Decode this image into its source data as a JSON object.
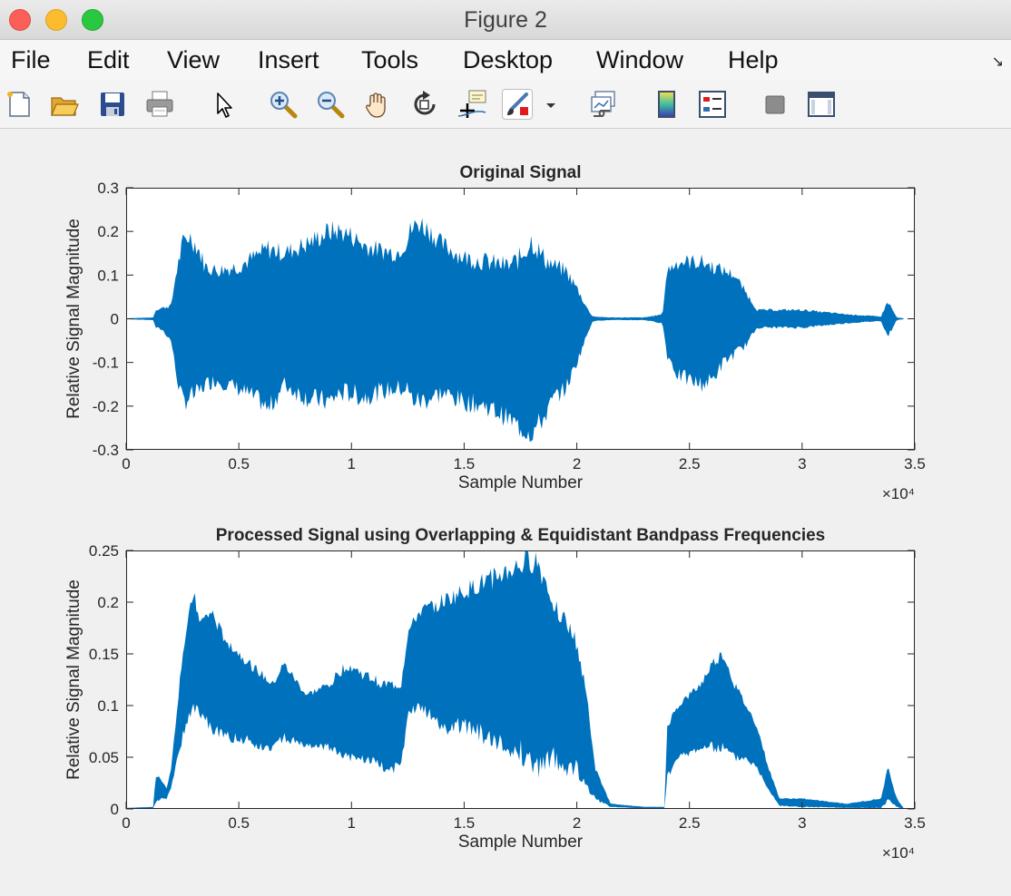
{
  "window": {
    "title": "Figure 2"
  },
  "menu": {
    "items": [
      "File",
      "Edit",
      "View",
      "Insert",
      "Tools",
      "Desktop",
      "Window",
      "Help"
    ]
  },
  "toolbar": {
    "icons": [
      "new-figure-icon",
      "open-file-icon",
      "save-icon",
      "print-icon",
      "edit-plot-arrow-icon",
      "zoom-in-icon",
      "zoom-out-icon",
      "pan-hand-icon",
      "rotate-3d-icon",
      "data-cursor-icon",
      "brush-icon",
      "brush-dropdown-icon",
      "link-plot-icon",
      "colorbar-icon",
      "legend-icon",
      "hide-plot-tools-icon",
      "show-plot-tools-icon"
    ],
    "pressed": "brush-icon"
  },
  "colors": {
    "series": "#0072bd",
    "axes_background": "#ffffff",
    "figure_background": "#f0f0f0"
  },
  "chart_data": [
    {
      "type": "line",
      "title": "Original Signal",
      "xlabel": "Sample Number",
      "ylabel": "Relative Signal Magnitude",
      "xlim": [
        0,
        3.5
      ],
      "ylim": [
        -0.3,
        0.3
      ],
      "xticks": [
        "0",
        "0.5",
        "1",
        "1.5",
        "2",
        "2.5",
        "3",
        "3.5"
      ],
      "yticks": [
        "-0.3",
        "-0.2",
        "-0.1",
        "0",
        "0.1",
        "0.2",
        "0.3"
      ],
      "x_exponent_label": "×10⁴",
      "grid": false,
      "series": [
        {
          "x": [
            0,
            0.12,
            0.13,
            0.16,
            0.2,
            0.22,
            0.25,
            0.28,
            0.32,
            0.35,
            0.4,
            0.5,
            0.6,
            0.63,
            0.7,
            0.8,
            0.9,
            0.95,
            1.0,
            1.05,
            1.1,
            1.2,
            1.25,
            1.26,
            1.3,
            1.35,
            1.4,
            1.5,
            1.6,
            1.7,
            1.75,
            1.8,
            1.85,
            1.9,
            1.95,
            2.0,
            2.05,
            2.07,
            2.1,
            2.15,
            2.3,
            2.38,
            2.4,
            2.45,
            2.5,
            2.55,
            2.6,
            2.65,
            2.7,
            2.75,
            2.8,
            2.85,
            2.9,
            3.0,
            3.2,
            3.35,
            3.38,
            3.42,
            3.45
          ],
          "upper": [
            0.001,
            0.003,
            0.02,
            0.025,
            0.03,
            0.1,
            0.17,
            0.19,
            0.16,
            0.12,
            0.11,
            0.12,
            0.15,
            0.16,
            0.15,
            0.17,
            0.2,
            0.2,
            0.19,
            0.17,
            0.16,
            0.15,
            0.18,
            0.2,
            0.22,
            0.2,
            0.17,
            0.14,
            0.13,
            0.12,
            0.14,
            0.18,
            0.14,
            0.12,
            0.11,
            0.07,
            0.02,
            0.006,
            0.004,
            0.003,
            0.003,
            0.01,
            0.11,
            0.13,
            0.13,
            0.13,
            0.12,
            0.11,
            0.1,
            0.06,
            0.02,
            0.02,
            0.02,
            0.02,
            0.01,
            0.005,
            0.04,
            0.003,
            0.001
          ],
          "lower": [
            -0.001,
            -0.003,
            -0.02,
            -0.025,
            -0.05,
            -0.12,
            -0.19,
            -0.18,
            -0.17,
            -0.15,
            -0.14,
            -0.16,
            -0.19,
            -0.21,
            -0.15,
            -0.18,
            -0.19,
            -0.17,
            -0.17,
            -0.18,
            -0.17,
            -0.16,
            -0.16,
            -0.18,
            -0.19,
            -0.18,
            -0.17,
            -0.19,
            -0.2,
            -0.23,
            -0.25,
            -0.26,
            -0.23,
            -0.18,
            -0.16,
            -0.1,
            -0.03,
            -0.006,
            -0.004,
            -0.003,
            -0.003,
            -0.01,
            -0.08,
            -0.13,
            -0.14,
            -0.15,
            -0.14,
            -0.1,
            -0.08,
            -0.06,
            -0.02,
            -0.02,
            -0.02,
            -0.02,
            -0.01,
            -0.005,
            -0.04,
            -0.003,
            -0.001
          ]
        }
      ]
    },
    {
      "type": "line",
      "title": "Processed Signal using Overlapping & Equidistant Bandpass Frequencies",
      "xlabel": "Sample Number",
      "ylabel": "Relative Signal Magnitude",
      "xlim": [
        0,
        3.5
      ],
      "ylim": [
        0,
        0.25
      ],
      "xticks": [
        "0",
        "0.5",
        "1",
        "1.5",
        "2",
        "2.5",
        "3",
        "3.5"
      ],
      "yticks": [
        "0",
        "0.05",
        "0.1",
        "0.15",
        "0.2",
        "0.25"
      ],
      "x_exponent_label": "×10⁴",
      "grid": false,
      "series": [
        {
          "x": [
            0,
            0.12,
            0.13,
            0.15,
            0.18,
            0.2,
            0.25,
            0.3,
            0.33,
            0.38,
            0.42,
            0.5,
            0.6,
            0.65,
            0.7,
            0.8,
            0.9,
            0.98,
            1.05,
            1.15,
            1.22,
            1.25,
            1.3,
            1.4,
            1.5,
            1.6,
            1.7,
            1.8,
            1.82,
            1.9,
            1.95,
            2.0,
            2.05,
            2.08,
            2.15,
            2.3,
            2.39,
            2.4,
            2.45,
            2.55,
            2.6,
            2.65,
            2.7,
            2.75,
            2.8,
            2.85,
            2.9,
            3.0,
            3.2,
            3.35,
            3.38,
            3.42,
            3.45
          ],
          "upper": [
            0.001,
            0.002,
            0.03,
            0.03,
            0.02,
            0.04,
            0.15,
            0.21,
            0.18,
            0.19,
            0.17,
            0.15,
            0.13,
            0.12,
            0.14,
            0.11,
            0.12,
            0.14,
            0.13,
            0.12,
            0.12,
            0.17,
            0.19,
            0.2,
            0.21,
            0.22,
            0.23,
            0.24,
            0.24,
            0.2,
            0.18,
            0.16,
            0.1,
            0.04,
            0.005,
            0.002,
            0.002,
            0.08,
            0.1,
            0.12,
            0.14,
            0.15,
            0.12,
            0.1,
            0.08,
            0.04,
            0.01,
            0.01,
            0.005,
            0.01,
            0.04,
            0.01,
            0.001
          ],
          "lower": [
            0,
            0.0005,
            0.005,
            0.01,
            0.01,
            0.02,
            0.07,
            0.1,
            0.09,
            0.08,
            0.07,
            0.07,
            0.06,
            0.06,
            0.07,
            0.06,
            0.06,
            0.05,
            0.05,
            0.04,
            0.04,
            0.09,
            0.1,
            0.08,
            0.08,
            0.07,
            0.06,
            0.05,
            0.04,
            0.05,
            0.04,
            0.04,
            0.02,
            0.01,
            0.002,
            0.0005,
            0.0005,
            0.03,
            0.05,
            0.06,
            0.06,
            0.06,
            0.05,
            0.05,
            0.04,
            0.02,
            0.003,
            0.002,
            0.001,
            0.001,
            0.008,
            0.002,
            0
          ]
        }
      ]
    }
  ]
}
